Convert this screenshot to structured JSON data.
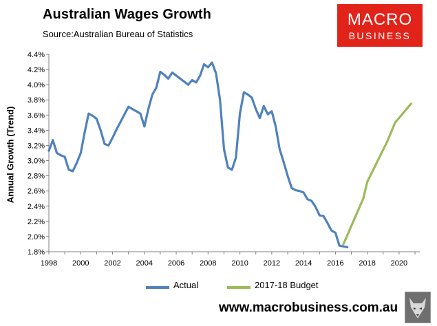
{
  "header": {
    "title": "Australian Wages Growth",
    "subtitle": "Source:Australian Bureau of Statistics"
  },
  "logo": {
    "top": "MACRO",
    "bottom": "BUSINESS"
  },
  "footer": {
    "url": "www.macrobusiness.com.au"
  },
  "colors": {
    "actual": "#4f81bd",
    "budget": "#9bbb59",
    "logo_bg": "#e2231a"
  },
  "chart_data": {
    "type": "line",
    "title": "Australian Wages Growth",
    "ylabel": "Annual Growth (Trend)",
    "xlabel": "",
    "xlim": [
      1998,
      2021.3
    ],
    "ylim": [
      1.8,
      4.4
    ],
    "x_ticks": [
      "1998",
      "2000",
      "2002",
      "2004",
      "2006",
      "2008",
      "2010",
      "2012",
      "2014",
      "2016",
      "2018",
      "2020"
    ],
    "y_ticks": [
      "1.8%",
      "2.0%",
      "2.2%",
      "2.4%",
      "2.6%",
      "2.8%",
      "3.0%",
      "3.2%",
      "3.4%",
      "3.6%",
      "3.8%",
      "4.0%",
      "4.2%",
      "4.4%"
    ],
    "grid": false,
    "legend": "bottom",
    "series": [
      {
        "name": "Actual",
        "x": [
          1998.0,
          1998.25,
          1998.5,
          1998.75,
          1999.0,
          1999.25,
          1999.5,
          1999.75,
          2000.0,
          2000.25,
          2000.5,
          2000.75,
          2001.0,
          2001.25,
          2001.5,
          2001.75,
          2002.0,
          2002.25,
          2002.5,
          2002.75,
          2003.0,
          2003.25,
          2003.5,
          2003.75,
          2004.0,
          2004.25,
          2004.5,
          2004.75,
          2005.0,
          2005.25,
          2005.5,
          2005.75,
          2006.0,
          2006.25,
          2006.5,
          2006.75,
          2007.0,
          2007.25,
          2007.5,
          2007.75,
          2008.0,
          2008.25,
          2008.5,
          2008.75,
          2009.0,
          2009.25,
          2009.5,
          2009.75,
          2010.0,
          2010.25,
          2010.5,
          2010.75,
          2011.0,
          2011.25,
          2011.5,
          2011.75,
          2012.0,
          2012.25,
          2012.5,
          2012.75,
          2013.0,
          2013.25,
          2013.5,
          2013.75,
          2014.0,
          2014.25,
          2014.5,
          2014.75,
          2015.0,
          2015.25,
          2015.5,
          2015.75,
          2016.0,
          2016.25,
          2016.5,
          2016.75
        ],
        "values": [
          3.13,
          3.27,
          3.1,
          3.07,
          3.05,
          2.88,
          2.86,
          2.97,
          3.1,
          3.37,
          3.62,
          3.59,
          3.55,
          3.4,
          3.22,
          3.2,
          3.3,
          3.41,
          3.51,
          3.61,
          3.71,
          3.68,
          3.65,
          3.62,
          3.45,
          3.68,
          3.87,
          3.96,
          4.17,
          4.13,
          4.08,
          4.16,
          4.12,
          4.08,
          4.04,
          4.0,
          4.06,
          4.03,
          4.12,
          4.27,
          4.23,
          4.29,
          4.15,
          3.8,
          3.15,
          2.91,
          2.88,
          3.04,
          3.62,
          3.9,
          3.87,
          3.83,
          3.68,
          3.56,
          3.72,
          3.61,
          3.65,
          3.45,
          3.15,
          2.98,
          2.8,
          2.64,
          2.61,
          2.6,
          2.58,
          2.49,
          2.47,
          2.39,
          2.28,
          2.27,
          2.18,
          2.08,
          2.05,
          1.88,
          1.87,
          1.86
        ]
      },
      {
        "name": "2017-18 Budget",
        "x": [
          2016.5,
          2017.75,
          2018.0,
          2019.25,
          2019.75,
          2020.75
        ],
        "values": [
          1.9,
          2.5,
          2.72,
          3.25,
          3.5,
          3.75
        ]
      }
    ]
  }
}
